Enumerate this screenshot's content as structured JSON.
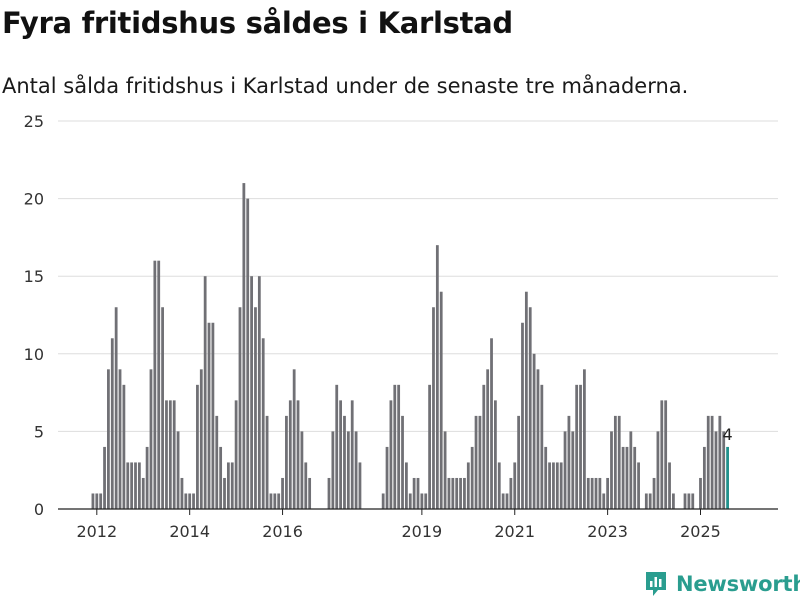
{
  "title": "Fyra fritidshus såldes i Karlstad",
  "subtitle": "Antal sålda fritidshus i Karlstad under de senaste tre månaderna.",
  "brand": {
    "name": "Newsworthy",
    "color": "#2a9d8f",
    "icon": "chart-bubble-icon"
  },
  "chart_data": {
    "type": "bar",
    "ylim": [
      0,
      25
    ],
    "y_ticks": [
      "0",
      "5",
      "10",
      "15",
      "20",
      "25"
    ],
    "x_ticks": [
      "2012",
      "2014",
      "2016",
      "2019",
      "2021",
      "2023",
      "2025"
    ],
    "grid": true,
    "legend": "none",
    "colors": {
      "bar": "#707075",
      "highlight": "#21918c"
    },
    "start": "2011-12",
    "end": "2025-12",
    "values": [
      1,
      1,
      1,
      4,
      9,
      11,
      13,
      9,
      8,
      3,
      3,
      3,
      3,
      2,
      4,
      9,
      16,
      16,
      13,
      7,
      7,
      7,
      5,
      2,
      1,
      1,
      1,
      8,
      9,
      15,
      12,
      12,
      6,
      4,
      2,
      3,
      3,
      7,
      13,
      21,
      20,
      15,
      13,
      15,
      11,
      6,
      1,
      1,
      1,
      2,
      6,
      7,
      9,
      7,
      5,
      3,
      2,
      null,
      null,
      null,
      null,
      2,
      5,
      8,
      7,
      6,
      5,
      7,
      5,
      3,
      null,
      null,
      null,
      null,
      null,
      1,
      4,
      7,
      8,
      8,
      6,
      3,
      1,
      2,
      2,
      1,
      1,
      8,
      13,
      17,
      14,
      5,
      2,
      2,
      2,
      2,
      2,
      3,
      4,
      6,
      6,
      8,
      9,
      11,
      7,
      3,
      1,
      1,
      2,
      3,
      6,
      12,
      14,
      13,
      10,
      9,
      8,
      4,
      3,
      3,
      3,
      3,
      5,
      6,
      5,
      8,
      8,
      9,
      2,
      2,
      2,
      2,
      1,
      2,
      5,
      6,
      6,
      4,
      4,
      5,
      4,
      3,
      null,
      1,
      1,
      2,
      5,
      7,
      7,
      3,
      1,
      null,
      null,
      1,
      1,
      1,
      null,
      2,
      4,
      6,
      6,
      5,
      6,
      5,
      4
    ],
    "highlight_label": "4"
  }
}
